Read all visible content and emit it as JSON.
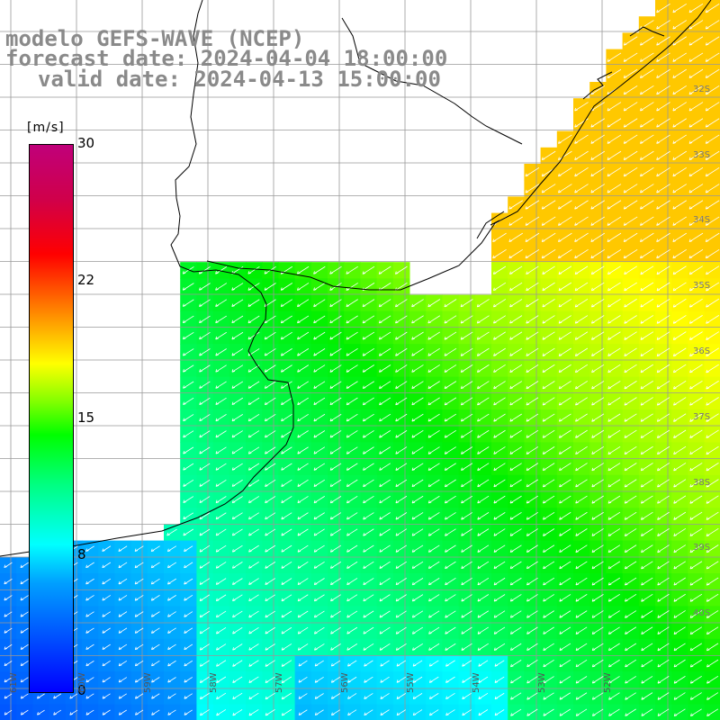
{
  "header": {
    "model": "modelo GEFS-WAVE (NCEP)",
    "forecast": "forecast date: 2024-04-04 18:00:00",
    "valid": "valid date: 2024-04-13 15:00:00"
  },
  "colorbar": {
    "unit": "[m/s]",
    "ticks": [
      "30",
      "22",
      "15",
      "8",
      "0"
    ],
    "colors": [
      "#0000ff",
      "#00a0ff",
      "#00ffff",
      "#00ff80",
      "#00ff00",
      "#80ff00",
      "#ffff00",
      "#ff8000",
      "#ff0000",
      "#c0007a"
    ]
  },
  "latitude_labels": [
    "32S",
    "33S",
    "34S",
    "35S",
    "36S",
    "37S",
    "38S",
    "39S",
    "40S"
  ],
  "longitude_labels": [
    "61W",
    "60W",
    "59W",
    "58W",
    "57W",
    "56W",
    "55W",
    "54W",
    "53W",
    "52W"
  ],
  "land_color": "#ffffff",
  "ocean_low_color": "#0000ff",
  "ocean_mid_color": "#00ff00",
  "ocean_high_color": "#ffd800"
}
